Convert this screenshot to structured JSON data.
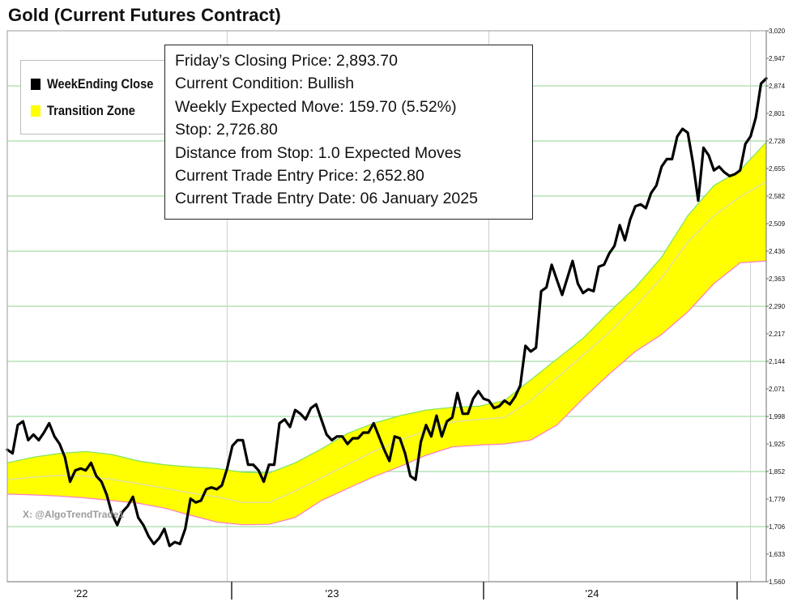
{
  "title": "Gold (Current Futures Contract)",
  "info_box": {
    "lines": [
      "Friday’s Closing Price: 2,893.70",
      "Current Condition: Bullish",
      "Weekly Expected Move: 159.70 (5.52%)",
      "Stop: 2,726.80",
      "Distance from Stop: 1.0 Expected Moves",
      "Current Trade Entry Price: 2,652.80",
      "Current Trade Entry Date: 06 January 2025"
    ]
  },
  "legend": {
    "items": [
      {
        "label": "WeekEnding Close",
        "color": "#000000"
      },
      {
        "label": "Transition Zone",
        "color": "#ffff00"
      }
    ]
  },
  "watermark": "X: @AlgoTrendTrade1",
  "colors": {
    "close_line": "#000000",
    "zone_fill": "#ffff00",
    "zone_upper_edge": "#7ee35a",
    "zone_lower_edge": "#ff7ac8",
    "zone_midline": "#e3e29a",
    "gridline": "#8fd48f"
  },
  "chart_data": {
    "type": "line",
    "title": "Gold (Current Futures Contract)",
    "x_unit": "week index",
    "x_range": [
      0,
      145
    ],
    "xtick_labels": [
      "'22",
      "'23",
      "'24"
    ],
    "xtick_week_index": [
      12,
      62,
      112
    ],
    "ylim": [
      1560,
      3020
    ],
    "yticks": [
      1560,
      1633,
      1706,
      1779,
      1852,
      1925,
      1998,
      2071,
      2144,
      2217,
      2290,
      2363,
      2436,
      2509,
      2582,
      2655,
      2728,
      2801,
      2874,
      2947,
      3020
    ],
    "ytick_labels": [
      "1,560",
      "1,633",
      "1,706",
      "1,779",
      "1,852",
      "1,925",
      "1,998",
      "2,071",
      "2,144",
      "2,217",
      "2,290",
      "2,363",
      "2,436",
      "2,509",
      "2,582",
      "2,655",
      "2,728",
      "2,801",
      "2,874",
      "2,947",
      "3,020"
    ],
    "grid": true,
    "legend_position": "top-left",
    "series": [
      {
        "name": "WeekEnding Close",
        "x": [
          0,
          1,
          2,
          3,
          4,
          5,
          6,
          7,
          8,
          9,
          10,
          11,
          12,
          13,
          14,
          15,
          16,
          17,
          18,
          19,
          20,
          21,
          22,
          23,
          24,
          25,
          26,
          27,
          28,
          29,
          30,
          31,
          32,
          33,
          34,
          35,
          36,
          37,
          38,
          39,
          40,
          41,
          42,
          43,
          44,
          45,
          46,
          47,
          48,
          49,
          50,
          51,
          52,
          53,
          54,
          55,
          56,
          57,
          58,
          59,
          60,
          61,
          62,
          63,
          64,
          65,
          66,
          67,
          68,
          69,
          70,
          71,
          72,
          73,
          74,
          75,
          76,
          77,
          78,
          79,
          80,
          81,
          82,
          83,
          84,
          85,
          86,
          87,
          88,
          89,
          90,
          91,
          92,
          93,
          94,
          95,
          96,
          97,
          98,
          99,
          100,
          101,
          102,
          103,
          104,
          105,
          106,
          107,
          108,
          109,
          110,
          111,
          112,
          113,
          114,
          115,
          116,
          117,
          118,
          119,
          120,
          121,
          122,
          123,
          124,
          125,
          126,
          127,
          128,
          129,
          130,
          131,
          132,
          133,
          134,
          135,
          136,
          137,
          138,
          139,
          140,
          141,
          142,
          143,
          144,
          145
        ],
        "values": [
          1910,
          1900,
          1975,
          1985,
          1935,
          1950,
          1935,
          1955,
          1980,
          1945,
          1925,
          1890,
          1825,
          1855,
          1860,
          1855,
          1875,
          1840,
          1825,
          1790,
          1740,
          1710,
          1745,
          1760,
          1785,
          1730,
          1710,
          1680,
          1660,
          1675,
          1700,
          1655,
          1665,
          1660,
          1700,
          1780,
          1770,
          1775,
          1805,
          1810,
          1805,
          1815,
          1860,
          1920,
          1935,
          1935,
          1870,
          1870,
          1855,
          1825,
          1870,
          1870,
          1980,
          1990,
          1970,
          2015,
          2005,
          1990,
          2020,
          2030,
          1990,
          1950,
          1935,
          1945,
          1945,
          1925,
          1940,
          1940,
          1955,
          1955,
          1980,
          1945,
          1910,
          1880,
          1945,
          1940,
          1900,
          1840,
          1830,
          1930,
          1975,
          1945,
          2000,
          1945,
          1985,
          1995,
          2060,
          2005,
          2005,
          2045,
          2065,
          2045,
          2040,
          2020,
          2025,
          2040,
          2030,
          2050,
          2080,
          2185,
          2170,
          2180,
          2330,
          2340,
          2400,
          2360,
          2320,
          2365,
          2410,
          2350,
          2325,
          2335,
          2330,
          2395,
          2400,
          2430,
          2450,
          2505,
          2465,
          2520,
          2555,
          2560,
          2550,
          2590,
          2610,
          2660,
          2680,
          2680,
          2740,
          2760,
          2750,
          2670,
          2570,
          2710,
          2690,
          2650,
          2660,
          2645,
          2635,
          2640,
          2650,
          2720,
          2740,
          2790,
          2880,
          2893.7
        ]
      },
      {
        "name": "Transition Zone",
        "x": [
          0,
          5,
          10,
          15,
          20,
          25,
          30,
          35,
          40,
          45,
          50,
          55,
          60,
          65,
          70,
          75,
          80,
          85,
          90,
          95,
          100,
          105,
          110,
          115,
          120,
          125,
          130,
          135,
          140,
          145
        ],
        "upper": [
          1875,
          1890,
          1900,
          1905,
          1897,
          1880,
          1870,
          1864,
          1860,
          1850,
          1848,
          1875,
          1912,
          1953,
          1980,
          2000,
          2015,
          2022,
          2025,
          2040,
          2095,
          2150,
          2205,
          2275,
          2340,
          2420,
          2530,
          2610,
          2650,
          2725
        ],
        "mid": [
          1830,
          1837,
          1842,
          1840,
          1831,
          1820,
          1808,
          1795,
          1785,
          1770,
          1770,
          1800,
          1835,
          1870,
          1905,
          1935,
          1960,
          1983,
          1990,
          1995,
          2040,
          2100,
          2160,
          2220,
          2290,
          2365,
          2460,
          2530,
          2580,
          2620
        ],
        "lower": [
          1792,
          1790,
          1787,
          1782,
          1775,
          1768,
          1755,
          1736,
          1718,
          1711,
          1712,
          1730,
          1775,
          1807,
          1838,
          1865,
          1895,
          1917,
          1922,
          1925,
          1935,
          1975,
          2045,
          2110,
          2170,
          2215,
          2275,
          2350,
          2405,
          2410
        ]
      }
    ]
  }
}
